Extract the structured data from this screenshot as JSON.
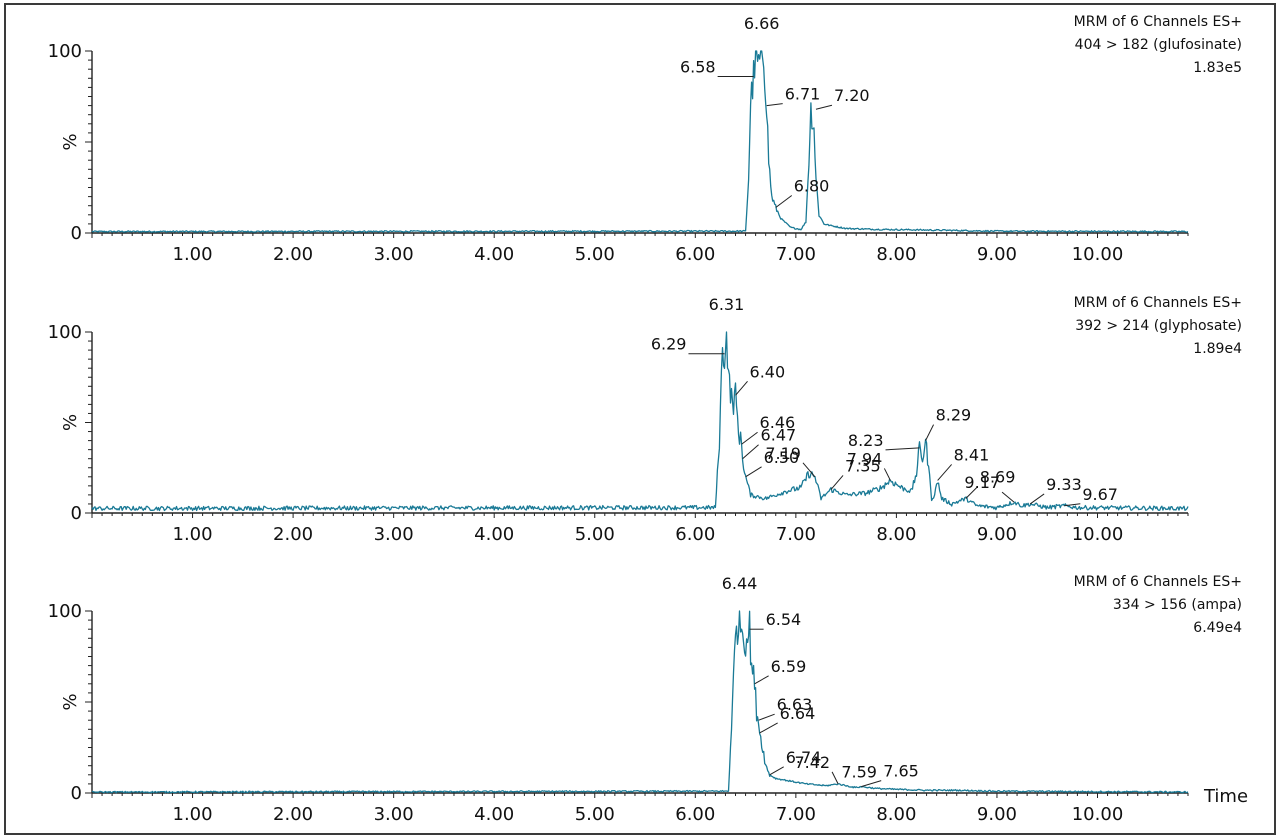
{
  "chart_data": [
    {
      "type": "line",
      "header": [
        "MRM of 6 Channels ES+",
        "404 > 182 (glufosinate)",
        "1.83e5"
      ],
      "ylabel": "%",
      "yticks": [
        "0",
        "100"
      ],
      "ylim": [
        0,
        100
      ],
      "xlim": [
        0,
        10.9
      ],
      "xticks": [
        "1.00",
        "2.00",
        "3.00",
        "4.00",
        "5.00",
        "6.00",
        "7.00",
        "8.00",
        "9.00",
        "10.00"
      ],
      "xlabel": "",
      "color": "#1a7a96",
      "baseline": 0.8,
      "noise": 0.4,
      "x": [
        0,
        6.5,
        6.53,
        6.55,
        6.58,
        6.6,
        6.63,
        6.66,
        6.68,
        6.71,
        6.73,
        6.76,
        6.8,
        6.85,
        6.95,
        7.05,
        7.1,
        7.13,
        7.15,
        7.18,
        7.2,
        7.23,
        7.28,
        7.35,
        7.5,
        7.8,
        8.5,
        9.0,
        10.9
      ],
      "y": [
        0.8,
        1.0,
        30,
        72,
        86,
        96,
        92,
        100,
        97,
        70,
        40,
        20,
        14,
        8,
        3,
        2,
        6,
        40,
        68,
        58,
        30,
        10,
        5,
        4,
        2.5,
        2,
        1.5,
        1,
        0.8
      ],
      "peaks": [
        {
          "label": "6.66",
          "x": 6.66,
          "y": 100
        },
        {
          "label": "6.58",
          "x": 6.58,
          "y": 86
        },
        {
          "label": "6.71",
          "x": 6.71,
          "y": 70
        },
        {
          "label": "7.20",
          "x": 7.2,
          "y": 68
        },
        {
          "label": "6.80",
          "x": 6.8,
          "y": 14
        }
      ]
    },
    {
      "type": "line",
      "header": [
        "MRM of 6 Channels ES+",
        "392 > 214 (glyphosate)",
        "1.89e4"
      ],
      "ylabel": "%",
      "yticks": [
        "0",
        "100"
      ],
      "ylim": [
        0,
        100
      ],
      "xlim": [
        0,
        10.9
      ],
      "xticks": [
        "1.00",
        "2.00",
        "3.00",
        "4.00",
        "5.00",
        "6.00",
        "7.00",
        "8.00",
        "9.00",
        "10.00"
      ],
      "xlabel": "",
      "color": "#1a7a96",
      "baseline": 2.5,
      "noise": 1.2,
      "x": [
        0,
        6.2,
        6.24,
        6.27,
        6.29,
        6.31,
        6.34,
        6.37,
        6.4,
        6.43,
        6.46,
        6.47,
        6.5,
        6.55,
        6.7,
        6.9,
        7.05,
        7.13,
        7.19,
        7.25,
        7.35,
        7.5,
        7.7,
        7.85,
        7.94,
        8.05,
        8.15,
        8.2,
        8.23,
        8.26,
        8.29,
        8.32,
        8.35,
        8.38,
        8.41,
        8.45,
        8.55,
        8.69,
        8.8,
        9.0,
        9.17,
        9.25,
        9.33,
        9.5,
        9.67,
        9.8,
        10.9
      ],
      "y": [
        2.5,
        3,
        40,
        90,
        88,
        100,
        70,
        60,
        65,
        45,
        38,
        30,
        20,
        10,
        8,
        12,
        14,
        22,
        20,
        8,
        13,
        10,
        11,
        14,
        18,
        14,
        12,
        22,
        36,
        30,
        40,
        25,
        8,
        10,
        18,
        8,
        5,
        8,
        4,
        3,
        6,
        4,
        5,
        3,
        4,
        3,
        2.5
      ],
      "peaks": [
        {
          "label": "6.31",
          "x": 6.31,
          "y": 100
        },
        {
          "label": "6.29",
          "x": 6.29,
          "y": 88
        },
        {
          "label": "6.40",
          "x": 6.4,
          "y": 65
        },
        {
          "label": "6.46",
          "x": 6.46,
          "y": 38
        },
        {
          "label": "6.47",
          "x": 6.47,
          "y": 30
        },
        {
          "label": "6.50",
          "x": 6.5,
          "y": 20
        },
        {
          "label": "7.19",
          "x": 7.19,
          "y": 20
        },
        {
          "label": "7.35",
          "x": 7.35,
          "y": 13
        },
        {
          "label": "7.94",
          "x": 7.94,
          "y": 18
        },
        {
          "label": "8.29",
          "x": 8.29,
          "y": 40
        },
        {
          "label": "8.23",
          "x": 8.23,
          "y": 36
        },
        {
          "label": "8.41",
          "x": 8.41,
          "y": 18
        },
        {
          "label": "8.69",
          "x": 8.69,
          "y": 8
        },
        {
          "label": "9.17",
          "x": 9.17,
          "y": 6
        },
        {
          "label": "9.33",
          "x": 9.33,
          "y": 5
        },
        {
          "label": "9.67",
          "x": 9.67,
          "y": 4
        }
      ]
    },
    {
      "type": "line",
      "header": [
        "MRM of 6 Channels ES+",
        "334 > 156 (ampa)",
        "6.49e4"
      ],
      "ylabel": "%",
      "yticks": [
        "0",
        "100"
      ],
      "ylim": [
        0,
        100
      ],
      "xlim": [
        0,
        10.9
      ],
      "xticks": [
        "1.00",
        "2.00",
        "3.00",
        "4.00",
        "5.00",
        "6.00",
        "7.00",
        "8.00",
        "9.00",
        "10.00"
      ],
      "xlabel": "Time",
      "color": "#1a7a96",
      "baseline": 0.5,
      "noise": 0.4,
      "x": [
        0,
        6.33,
        6.37,
        6.4,
        6.44,
        6.47,
        6.5,
        6.54,
        6.56,
        6.59,
        6.61,
        6.63,
        6.64,
        6.67,
        6.7,
        6.74,
        6.8,
        6.9,
        7.1,
        7.3,
        7.42,
        7.5,
        7.59,
        7.65,
        7.8,
        8.0,
        8.3,
        8.6,
        9.0,
        10.9
      ],
      "y": [
        0.5,
        1,
        50,
        85,
        100,
        88,
        85,
        90,
        70,
        60,
        45,
        40,
        33,
        25,
        15,
        10,
        8,
        7,
        5,
        4,
        5,
        4,
        3,
        3.5,
        2.5,
        2,
        1.5,
        1.5,
        1,
        0.5
      ],
      "peaks": [
        {
          "label": "6.44",
          "x": 6.44,
          "y": 100
        },
        {
          "label": "6.54",
          "x": 6.54,
          "y": 90
        },
        {
          "label": "6.59",
          "x": 6.59,
          "y": 60
        },
        {
          "label": "6.63",
          "x": 6.63,
          "y": 40
        },
        {
          "label": "6.64",
          "x": 6.64,
          "y": 33
        },
        {
          "label": "6.74",
          "x": 6.74,
          "y": 10
        },
        {
          "label": "7.42",
          "x": 7.42,
          "y": 5
        },
        {
          "label": "7.59",
          "x": 7.59,
          "y": 3
        },
        {
          "label": "7.65",
          "x": 7.65,
          "y": 3.5
        }
      ]
    }
  ]
}
